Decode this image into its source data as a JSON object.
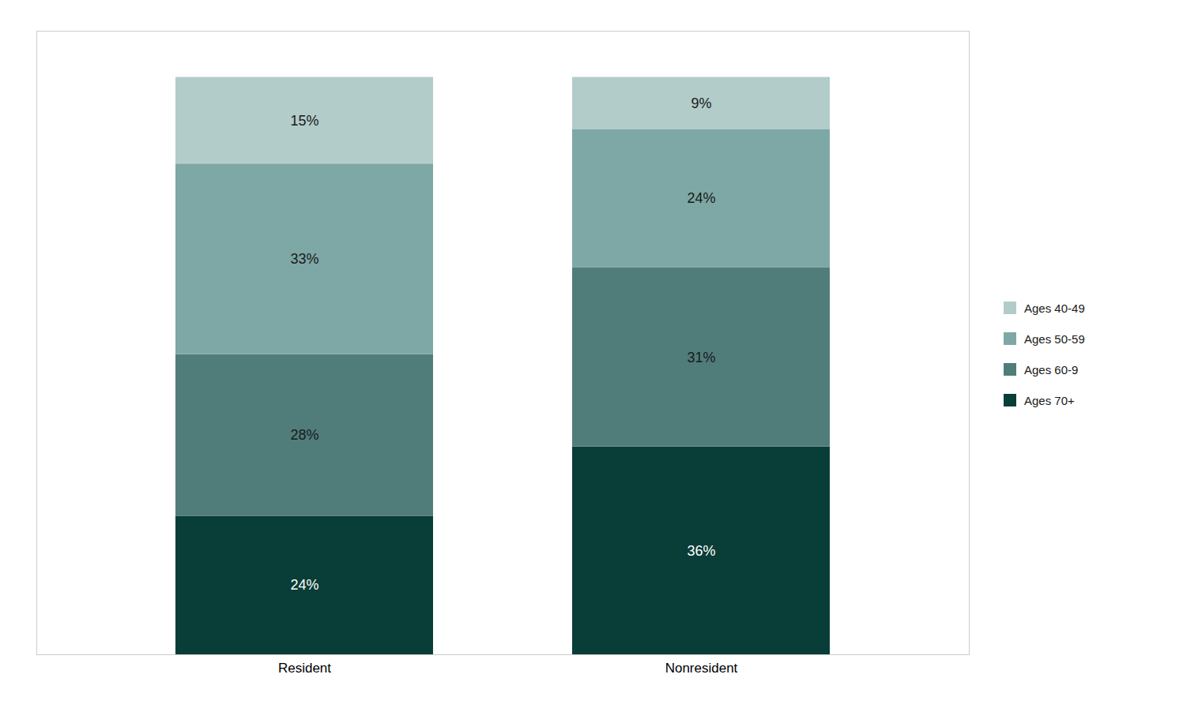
{
  "chart_data": {
    "type": "bar",
    "stacked": true,
    "categories": [
      "Resident",
      "Nonresident"
    ],
    "series": [
      {
        "name": "Ages 70+",
        "color": "#093d38",
        "values": [
          24,
          36
        ],
        "value_labels": [
          "24%",
          "36%"
        ]
      },
      {
        "name": "Ages 60-9",
        "color": "#507d7a",
        "values": [
          28,
          31
        ],
        "value_labels": [
          "28%",
          "31%"
        ]
      },
      {
        "name": "Ages 50-59",
        "color": "#7da8a5",
        "values": [
          33,
          24
        ],
        "value_labels": [
          "33%",
          "24%"
        ]
      },
      {
        "name": "Ages 40-49",
        "color": "#b2ccca",
        "values": [
          15,
          9
        ],
        "value_labels": [
          "15%",
          "9%"
        ]
      }
    ],
    "ylim": [
      0,
      108
    ],
    "yticks": [],
    "tick_labels": "x",
    "data_labels": true,
    "grid": false,
    "legend": "right"
  }
}
